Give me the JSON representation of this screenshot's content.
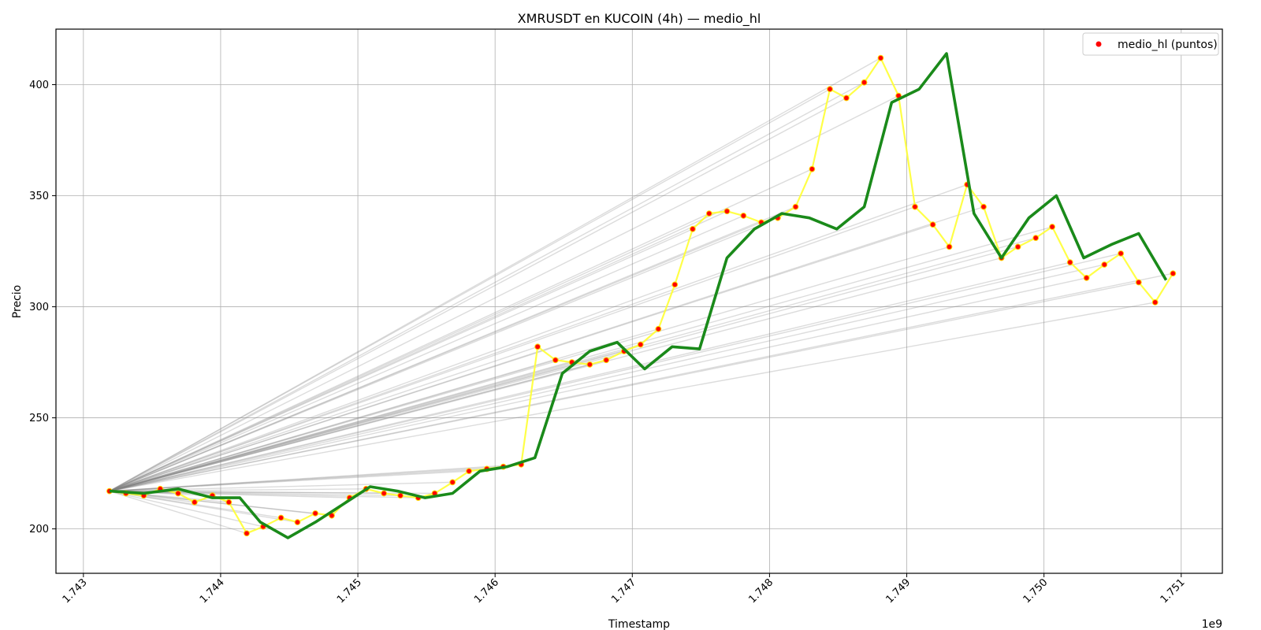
{
  "chart_data": {
    "type": "line",
    "title": "XMRUSDT en KUCOIN (4h) — medio_hl",
    "xlabel": "Timestamp",
    "ylabel": "Precio",
    "x_offset_label": "1e9",
    "xlim": [
      1.7428,
      1.7513
    ],
    "ylim": [
      180,
      425
    ],
    "x_ticks": [
      1.743,
      1.744,
      1.745,
      1.746,
      1.747,
      1.748,
      1.749,
      1.75,
      1.751
    ],
    "x_tick_labels": [
      "1.743",
      "1.744",
      "1.745",
      "1.746",
      "1.747",
      "1.748",
      "1.749",
      "1.750",
      "1.751"
    ],
    "y_ticks": [
      200,
      250,
      300,
      350,
      400
    ],
    "y_tick_labels": [
      "200",
      "250",
      "300",
      "350",
      "400"
    ],
    "grid": true,
    "legend": {
      "position": "top-right",
      "entries": [
        {
          "label": "medio_hl (puntos)",
          "color": "#ff0000",
          "marker": "dot"
        }
      ]
    },
    "colors": {
      "points": "#ff0000",
      "point_edge": "#ffd700",
      "connect_line": "#ffff33",
      "fan_lines": "#808080",
      "trend_line": "#1a8a1a"
    },
    "fan_origin": [
      1.74319,
      217
    ],
    "series": [
      {
        "name": "medio_hl (puntos)",
        "role": "points",
        "x": [
          1.74319,
          1.74331,
          1.74344,
          1.74356,
          1.74369,
          1.74381,
          1.74394,
          1.74406,
          1.74419,
          1.74431,
          1.74444,
          1.74456,
          1.74469,
          1.74481,
          1.74494,
          1.74506,
          1.74519,
          1.74531,
          1.74544,
          1.74556,
          1.74569,
          1.74581,
          1.74594,
          1.74606,
          1.74619,
          1.74631,
          1.74644,
          1.74656,
          1.74669,
          1.74681,
          1.74694,
          1.74706,
          1.74719,
          1.74731,
          1.74744,
          1.74756,
          1.74769,
          1.74781,
          1.74794,
          1.74806,
          1.74819,
          1.74831,
          1.74844,
          1.74856,
          1.74869,
          1.74881,
          1.74894,
          1.74906,
          1.74919,
          1.74931,
          1.74944,
          1.74956,
          1.74969,
          1.74981,
          1.74994,
          1.75006,
          1.75019,
          1.75031,
          1.75044,
          1.75056,
          1.75069,
          1.75081,
          1.75094
        ],
        "y": [
          217,
          216,
          215,
          218,
          216,
          212,
          215,
          212,
          198,
          201,
          205,
          203,
          207,
          206,
          214,
          218,
          216,
          215,
          214,
          216,
          221,
          226,
          227,
          228,
          229,
          282,
          276,
          275,
          274,
          276,
          280,
          283,
          290,
          310,
          335,
          342,
          343,
          341,
          338,
          340,
          345,
          362,
          398,
          394,
          401,
          412,
          395,
          345,
          337,
          327,
          355,
          345,
          322,
          327,
          331,
          336,
          320,
          313,
          319,
          324,
          311,
          302,
          315
        ]
      },
      {
        "name": "",
        "role": "trend",
        "x": [
          1.74319,
          1.74344,
          1.74369,
          1.74394,
          1.74414,
          1.74429,
          1.74449,
          1.74469,
          1.74489,
          1.74509,
          1.74529,
          1.74549,
          1.74569,
          1.74589,
          1.74609,
          1.74629,
          1.74649,
          1.74669,
          1.74689,
          1.74709,
          1.74729,
          1.74749,
          1.74769,
          1.74789,
          1.74809,
          1.74829,
          1.74849,
          1.74869,
          1.74889,
          1.74909,
          1.74929,
          1.74949,
          1.74969,
          1.74989,
          1.75009,
          1.75029,
          1.75049,
          1.75069,
          1.75089
        ],
        "y": [
          217,
          216,
          218,
          214,
          214,
          203,
          196,
          203,
          211,
          219,
          217,
          214,
          216,
          226,
          228,
          232,
          270,
          280,
          284,
          272,
          282,
          281,
          322,
          335,
          342,
          340,
          335,
          345,
          392,
          398,
          414,
          342,
          322,
          340,
          350,
          322,
          328,
          333,
          312
        ]
      }
    ]
  }
}
